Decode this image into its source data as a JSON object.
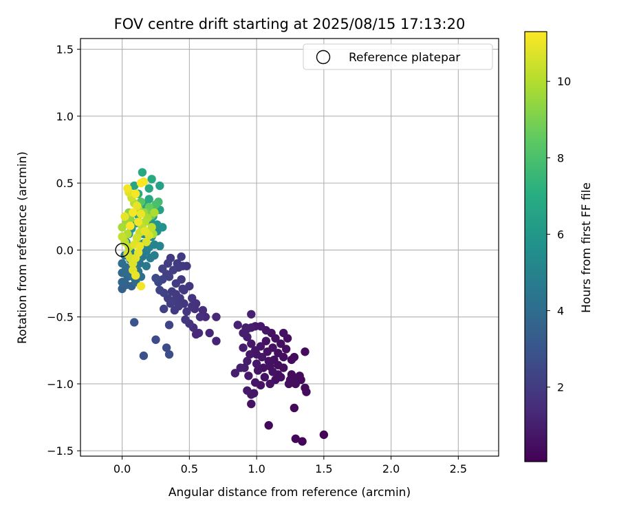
{
  "chart_data": {
    "type": "scatter",
    "title": "FOV centre drift starting at 2025/08/15 17:13:20",
    "xlabel": "Angular distance from reference (arcmin)",
    "ylabel": "Rotation from reference (arcmin)",
    "xlim": [
      -0.31,
      2.8
    ],
    "ylim": [
      -1.54,
      1.58
    ],
    "x_ticks": [
      0.0,
      0.5,
      1.0,
      1.5,
      2.0,
      2.5
    ],
    "x_tick_labels": [
      "0.0",
      "0.5",
      "1.0",
      "1.5",
      "2.0",
      "2.5"
    ],
    "y_ticks": [
      -1.5,
      -1.0,
      -0.5,
      0.0,
      0.5,
      1.0,
      1.5
    ],
    "y_tick_labels": [
      "−1.5",
      "−1.0",
      "−0.5",
      "0.0",
      "0.5",
      "1.0",
      "1.5"
    ],
    "grid": true,
    "legend_placement": "top-right",
    "legend": [
      {
        "label": "Reference platepar",
        "marker": "open-circle"
      }
    ],
    "reference_point": {
      "x": 0.0,
      "y": 0.0,
      "label": "Reference platepar"
    },
    "colorbar": {
      "label": "Hours from first FF file",
      "colormap": "viridis",
      "range": [
        0.05,
        11.3
      ],
      "ticks": [
        2,
        4,
        6,
        8,
        10
      ],
      "tick_labels": [
        "2",
        "4",
        "6",
        "8",
        "10"
      ]
    },
    "point_fields": [
      "x",
      "y",
      "hours"
    ],
    "points": [
      [
        1.5,
        -1.38,
        0.1
      ],
      [
        1.34,
        -1.43,
        0.15
      ],
      [
        1.29,
        -1.41,
        0.2
      ],
      [
        1.09,
        -1.31,
        0.3
      ],
      [
        1.28,
        -1.18,
        0.3
      ],
      [
        0.96,
        -1.15,
        0.6
      ],
      [
        1.37,
        -1.06,
        0.4
      ],
      [
        1.36,
        -1.03,
        0.4
      ],
      [
        1.29,
        -1.0,
        0.5
      ],
      [
        1.24,
        -1.0,
        0.5
      ],
      [
        1.1,
        -1.0,
        0.6
      ],
      [
        1.06,
        -0.95,
        0.6
      ],
      [
        1.03,
        -1.01,
        0.6
      ],
      [
        0.99,
        -0.99,
        0.7
      ],
      [
        0.94,
        -0.94,
        0.8
      ],
      [
        0.91,
        -0.88,
        0.9
      ],
      [
        0.84,
        -0.92,
        1.0
      ],
      [
        0.88,
        -0.88,
        1.0
      ],
      [
        0.93,
        -0.83,
        0.9
      ],
      [
        1.0,
        -0.85,
        0.8
      ],
      [
        1.04,
        -0.8,
        0.7
      ],
      [
        1.09,
        -0.83,
        0.6
      ],
      [
        1.13,
        -0.82,
        0.5
      ],
      [
        1.16,
        -0.86,
        0.5
      ],
      [
        1.2,
        -0.88,
        0.5
      ],
      [
        1.26,
        -0.82,
        0.4
      ],
      [
        1.28,
        -0.8,
        0.4
      ],
      [
        1.36,
        -0.76,
        0.4
      ],
      [
        1.22,
        -0.74,
        0.5
      ],
      [
        1.18,
        -0.7,
        0.5
      ],
      [
        1.14,
        -0.66,
        0.6
      ],
      [
        1.07,
        -0.68,
        0.6
      ],
      [
        1.03,
        -0.72,
        0.7
      ],
      [
        0.99,
        -0.75,
        0.7
      ],
      [
        0.96,
        -0.7,
        0.8
      ],
      [
        0.93,
        -0.65,
        0.9
      ],
      [
        0.9,
        -0.62,
        1.0
      ],
      [
        0.92,
        -0.58,
        1.0
      ],
      [
        0.96,
        -0.58,
        0.9
      ],
      [
        0.99,
        -0.57,
        0.8
      ],
      [
        1.03,
        -0.57,
        0.8
      ],
      [
        1.07,
        -0.6,
        0.7
      ],
      [
        1.11,
        -0.62,
        0.6
      ],
      [
        1.2,
        -0.62,
        0.6
      ],
      [
        1.23,
        -0.66,
        0.5
      ],
      [
        1.32,
        -0.94,
        0.4
      ],
      [
        1.33,
        -0.97,
        0.3
      ],
      [
        1.3,
        -0.97,
        0.4
      ],
      [
        1.26,
        -0.93,
        0.4
      ],
      [
        1.18,
        -0.95,
        0.5
      ],
      [
        1.14,
        -0.97,
        0.5
      ],
      [
        0.98,
        -1.07,
        0.7
      ],
      [
        0.96,
        -1.08,
        0.7
      ],
      [
        0.93,
        -1.05,
        0.8
      ],
      [
        0.93,
        -0.59,
        1.0
      ],
      [
        0.96,
        -0.48,
        1.1
      ],
      [
        0.86,
        -0.56,
        1.1
      ],
      [
        0.9,
        -0.73,
        0.9
      ],
      [
        0.95,
        -0.78,
        0.8
      ],
      [
        1.0,
        -0.78,
        0.7
      ],
      [
        1.08,
        -0.76,
        0.6
      ],
      [
        1.12,
        -0.73,
        0.6
      ],
      [
        1.16,
        -0.77,
        0.5
      ],
      [
        1.2,
        -0.8,
        0.5
      ],
      [
        1.1,
        -0.87,
        0.6
      ],
      [
        1.05,
        -0.88,
        0.6
      ],
      [
        1.01,
        -0.9,
        0.7
      ],
      [
        1.12,
        -0.91,
        0.6
      ],
      [
        1.16,
        -0.93,
        0.5
      ],
      [
        1.25,
        -0.97,
        0.4
      ],
      [
        0.7,
        -0.68,
        1.2
      ],
      [
        0.65,
        -0.62,
        1.3
      ],
      [
        0.55,
        -0.63,
        1.4
      ],
      [
        0.53,
        -0.58,
        1.5
      ],
      [
        0.57,
        -0.62,
        1.4
      ],
      [
        0.62,
        -0.5,
        1.4
      ],
      [
        0.7,
        -0.5,
        1.3
      ],
      [
        0.58,
        -0.5,
        1.6
      ],
      [
        0.5,
        -0.55,
        1.7
      ],
      [
        0.48,
        -0.46,
        1.8
      ],
      [
        0.52,
        -0.42,
        1.7
      ],
      [
        0.54,
        -0.44,
        1.6
      ],
      [
        0.46,
        -0.4,
        1.8
      ],
      [
        0.43,
        -0.36,
        1.9
      ],
      [
        0.4,
        -0.33,
        2.0
      ],
      [
        0.37,
        -0.31,
        2.0
      ],
      [
        0.34,
        -0.36,
        2.1
      ],
      [
        0.31,
        -0.32,
        2.2
      ],
      [
        0.28,
        -0.3,
        2.3
      ],
      [
        0.27,
        -0.24,
        2.4
      ],
      [
        0.3,
        -0.22,
        2.3
      ],
      [
        0.35,
        -0.2,
        2.2
      ],
      [
        0.38,
        -0.15,
        2.1
      ],
      [
        0.42,
        -0.13,
        2.0
      ],
      [
        0.45,
        -0.12,
        1.9
      ],
      [
        0.41,
        -0.1,
        2.0
      ],
      [
        0.36,
        -0.06,
        2.0
      ],
      [
        0.33,
        -0.18,
        2.2
      ],
      [
        0.4,
        -0.25,
        2.0
      ],
      [
        0.45,
        -0.29,
        1.9
      ],
      [
        0.44,
        -0.22,
        1.9
      ],
      [
        0.48,
        -0.12,
        1.8
      ],
      [
        0.52,
        -0.36,
        1.7
      ],
      [
        0.42,
        -0.42,
        1.9
      ],
      [
        0.31,
        -0.44,
        2.2
      ],
      [
        0.35,
        -0.56,
        2.3
      ],
      [
        0.25,
        -0.67,
        2.6
      ],
      [
        0.33,
        -0.73,
        2.6
      ],
      [
        0.35,
        -0.78,
        2.7
      ],
      [
        0.16,
        -0.79,
        2.8
      ],
      [
        0.09,
        -0.54,
        3.0
      ],
      [
        0.25,
        -0.21,
        2.6
      ],
      [
        0.39,
        -0.45,
        2.0
      ],
      [
        0.47,
        -0.52,
        1.8
      ],
      [
        0.4,
        -0.37,
        2.0
      ],
      [
        0.36,
        -0.4,
        2.1
      ],
      [
        0.46,
        -0.3,
        1.9
      ],
      [
        0.5,
        -0.27,
        1.8
      ],
      [
        0.55,
        -0.4,
        1.6
      ],
      [
        0.6,
        -0.45,
        1.5
      ],
      [
        0.34,
        -0.1,
        2.1
      ],
      [
        0.3,
        -0.14,
        2.2
      ],
      [
        0.44,
        -0.05,
        2.0
      ],
      [
        0.38,
        -0.38,
        2.0
      ],
      [
        0.0,
        -0.29,
        3.5
      ],
      [
        0.03,
        -0.26,
        3.6
      ],
      [
        0.07,
        -0.27,
        3.5
      ],
      [
        0.0,
        -0.24,
        3.7
      ],
      [
        0.04,
        -0.2,
        3.8
      ],
      [
        0.0,
        -0.17,
        3.9
      ],
      [
        0.03,
        -0.13,
        4.0
      ],
      [
        0.0,
        -0.1,
        4.1
      ],
      [
        0.06,
        -0.07,
        4.2
      ],
      [
        0.02,
        -0.04,
        4.3
      ],
      [
        0.08,
        -0.03,
        4.4
      ],
      [
        0.1,
        -0.08,
        4.4
      ],
      [
        0.12,
        -0.16,
        4.3
      ],
      [
        0.08,
        -0.2,
        4.1
      ],
      [
        0.1,
        -0.24,
        3.9
      ],
      [
        0.05,
        -0.17,
        4.0
      ],
      [
        0.13,
        -0.1,
        4.3
      ],
      [
        0.15,
        -0.05,
        4.6
      ],
      [
        0.18,
        -0.01,
        4.8
      ],
      [
        0.2,
        0.02,
        5.0
      ],
      [
        0.24,
        0.04,
        5.0
      ],
      [
        0.28,
        0.03,
        5.1
      ],
      [
        0.24,
        -0.04,
        4.8
      ],
      [
        0.21,
        -0.06,
        4.7
      ],
      [
        0.18,
        -0.12,
        4.5
      ],
      [
        0.14,
        -0.2,
        4.2
      ],
      [
        0.16,
        0.05,
        5.2
      ],
      [
        0.22,
        0.1,
        5.4
      ],
      [
        0.26,
        0.14,
        5.6
      ],
      [
        0.3,
        0.17,
        5.7
      ],
      [
        0.26,
        0.19,
        5.8
      ],
      [
        0.22,
        0.2,
        5.9
      ],
      [
        0.19,
        0.22,
        6.0
      ],
      [
        0.23,
        0.25,
        6.2
      ],
      [
        0.28,
        0.3,
        6.4
      ],
      [
        0.24,
        0.32,
        6.5
      ],
      [
        0.18,
        0.35,
        6.6
      ],
      [
        0.15,
        0.3,
        6.6
      ],
      [
        0.12,
        0.26,
        6.4
      ],
      [
        0.1,
        0.2,
        6.2
      ],
      [
        0.07,
        0.16,
        6.0
      ],
      [
        0.05,
        0.12,
        5.8
      ],
      [
        0.03,
        0.06,
        5.5
      ],
      [
        0.06,
        0.0,
        5.1
      ],
      [
        0.12,
        0.04,
        5.3
      ],
      [
        0.28,
        0.48,
        6.5
      ],
      [
        0.15,
        0.58,
        6.8
      ],
      [
        0.22,
        0.53,
        6.9
      ],
      [
        0.2,
        0.46,
        6.8
      ],
      [
        0.09,
        0.48,
        6.7
      ],
      [
        0.12,
        0.42,
        6.9
      ],
      [
        0.2,
        0.38,
        6.8
      ],
      [
        0.16,
        0.12,
        5.5
      ],
      [
        0.11,
        0.09,
        5.4
      ],
      [
        0.08,
        -0.13,
        4.2
      ],
      [
        0.27,
        0.36,
        7.8
      ],
      [
        0.25,
        0.34,
        8.0
      ],
      [
        0.14,
        0.36,
        8.3
      ],
      [
        0.2,
        0.32,
        8.6
      ],
      [
        0.18,
        0.28,
        8.9
      ],
      [
        0.22,
        0.26,
        8.7
      ],
      [
        0.05,
        0.28,
        9.2
      ],
      [
        0.06,
        0.23,
        9.4
      ],
      [
        0.03,
        0.2,
        9.6
      ],
      [
        0.0,
        0.17,
        9.8
      ],
      [
        0.04,
        0.12,
        10.0
      ],
      [
        0.02,
        0.06,
        10.1
      ],
      [
        0.05,
        0.02,
        10.3
      ],
      [
        0.04,
        -0.03,
        10.5
      ],
      [
        0.06,
        -0.06,
        10.6
      ],
      [
        0.08,
        -0.1,
        10.7
      ],
      [
        0.1,
        -0.06,
        10.8
      ],
      [
        0.12,
        -0.02,
        10.9
      ],
      [
        0.09,
        0.04,
        10.8
      ],
      [
        0.11,
        0.09,
        10.6
      ],
      [
        0.13,
        0.13,
        10.4
      ],
      [
        0.15,
        0.17,
        10.2
      ],
      [
        0.17,
        0.21,
        10.0
      ],
      [
        0.19,
        0.24,
        9.9
      ],
      [
        0.16,
        0.28,
        9.6
      ],
      [
        0.12,
        0.31,
        9.8
      ],
      [
        0.09,
        0.35,
        10.0
      ],
      [
        0.07,
        0.39,
        10.4
      ],
      [
        0.05,
        0.43,
        10.8
      ],
      [
        0.04,
        0.46,
        11.1
      ],
      [
        0.1,
        0.42,
        11.2
      ],
      [
        0.14,
        0.5,
        11.3
      ],
      [
        0.16,
        0.51,
        11.2
      ],
      [
        0.11,
        0.33,
        10.9
      ],
      [
        0.14,
        0.27,
        11.0
      ],
      [
        0.17,
        0.14,
        10.9
      ],
      [
        0.2,
        0.11,
        10.7
      ],
      [
        0.22,
        0.17,
        10.2
      ],
      [
        0.24,
        0.28,
        9.9
      ],
      [
        0.18,
        0.06,
        10.7
      ],
      [
        0.13,
        0.03,
        11.0
      ],
      [
        0.08,
        -0.15,
        10.8
      ],
      [
        0.1,
        -0.19,
        11.0
      ],
      [
        0.14,
        -0.27,
        11.1
      ],
      [
        0.23,
        0.12,
        9.8
      ],
      [
        0.08,
        0.28,
        11.2
      ],
      [
        0.02,
        0.25,
        10.9
      ],
      [
        0.0,
        0.1,
        10.3
      ],
      [
        0.06,
        0.18,
        11.3
      ],
      [
        0.12,
        0.21,
        11.1
      ]
    ]
  }
}
